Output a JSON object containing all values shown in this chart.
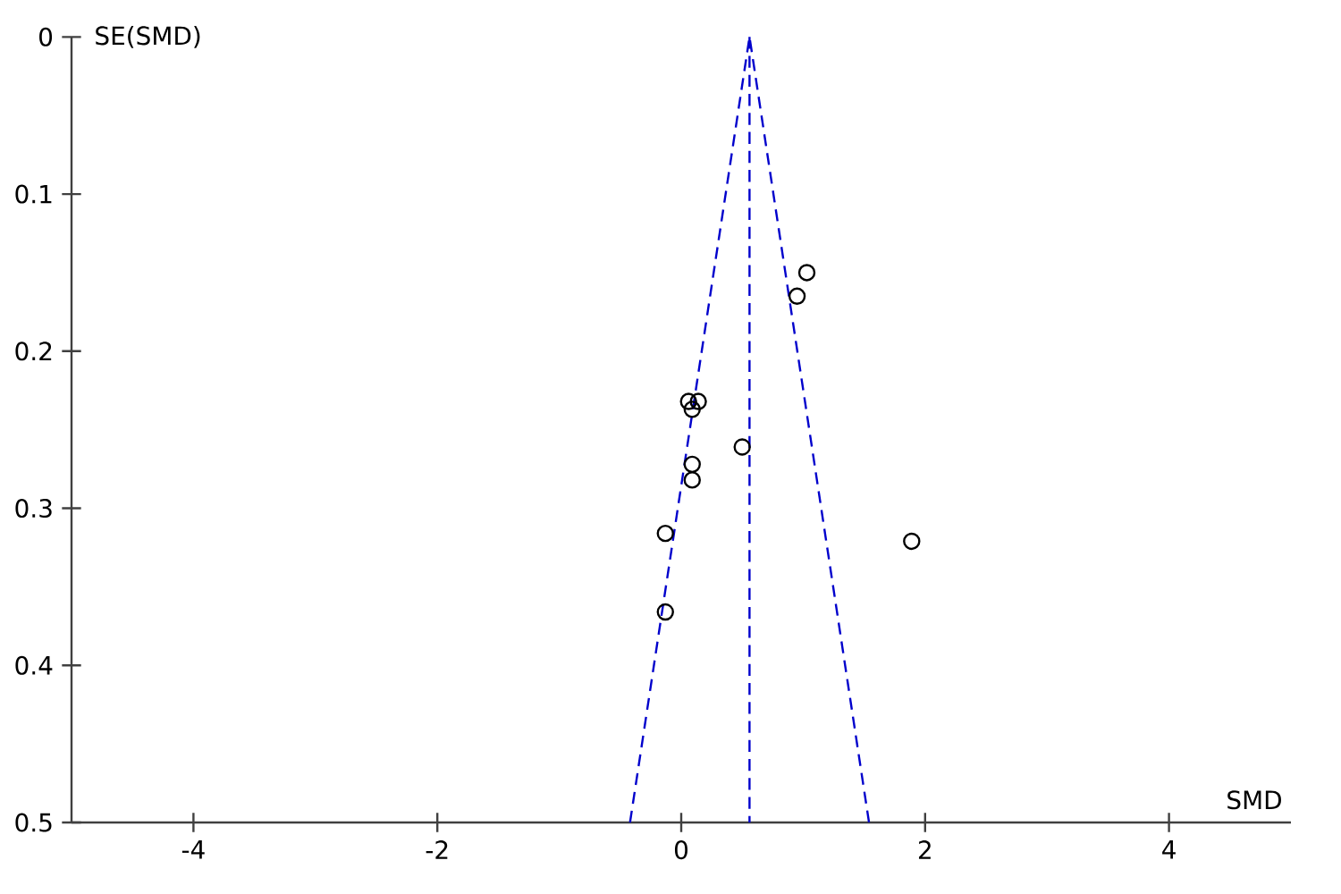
{
  "chart_data": {
    "type": "scatter",
    "xlabel": "SMD",
    "ylabel": "SE(SMD)",
    "xlim": [
      -5,
      5
    ],
    "ylim": [
      0.5,
      0
    ],
    "xticks": [
      -4,
      -2,
      0,
      2,
      4
    ],
    "yticks": [
      0,
      0.1,
      0.2,
      0.3,
      0.4,
      0.5
    ],
    "marker": "circle",
    "grid": false,
    "series": [
      {
        "color": "#000000",
        "x": [
          1.03,
          0.95,
          0.06,
          0.14,
          0.09,
          0.5,
          0.09,
          0.09,
          -0.13,
          -0.13,
          1.89
        ],
        "values": [
          0.15,
          0.165,
          0.232,
          0.232,
          0.237,
          0.261,
          0.272,
          0.282,
          0.316,
          0.366,
          0.321
        ]
      },
      {
        "type": "line",
        "marker": "none",
        "line_style": "dashed",
        "color": "#0000cc",
        "x": [
          -0.42,
          0.56,
          1.54
        ],
        "values": [
          0.5,
          0,
          0.5
        ]
      }
    ],
    "ref_lines": [
      {
        "axis": "x",
        "value": 0.56,
        "color": "#0000cc",
        "line_style": "dashed"
      }
    ]
  }
}
